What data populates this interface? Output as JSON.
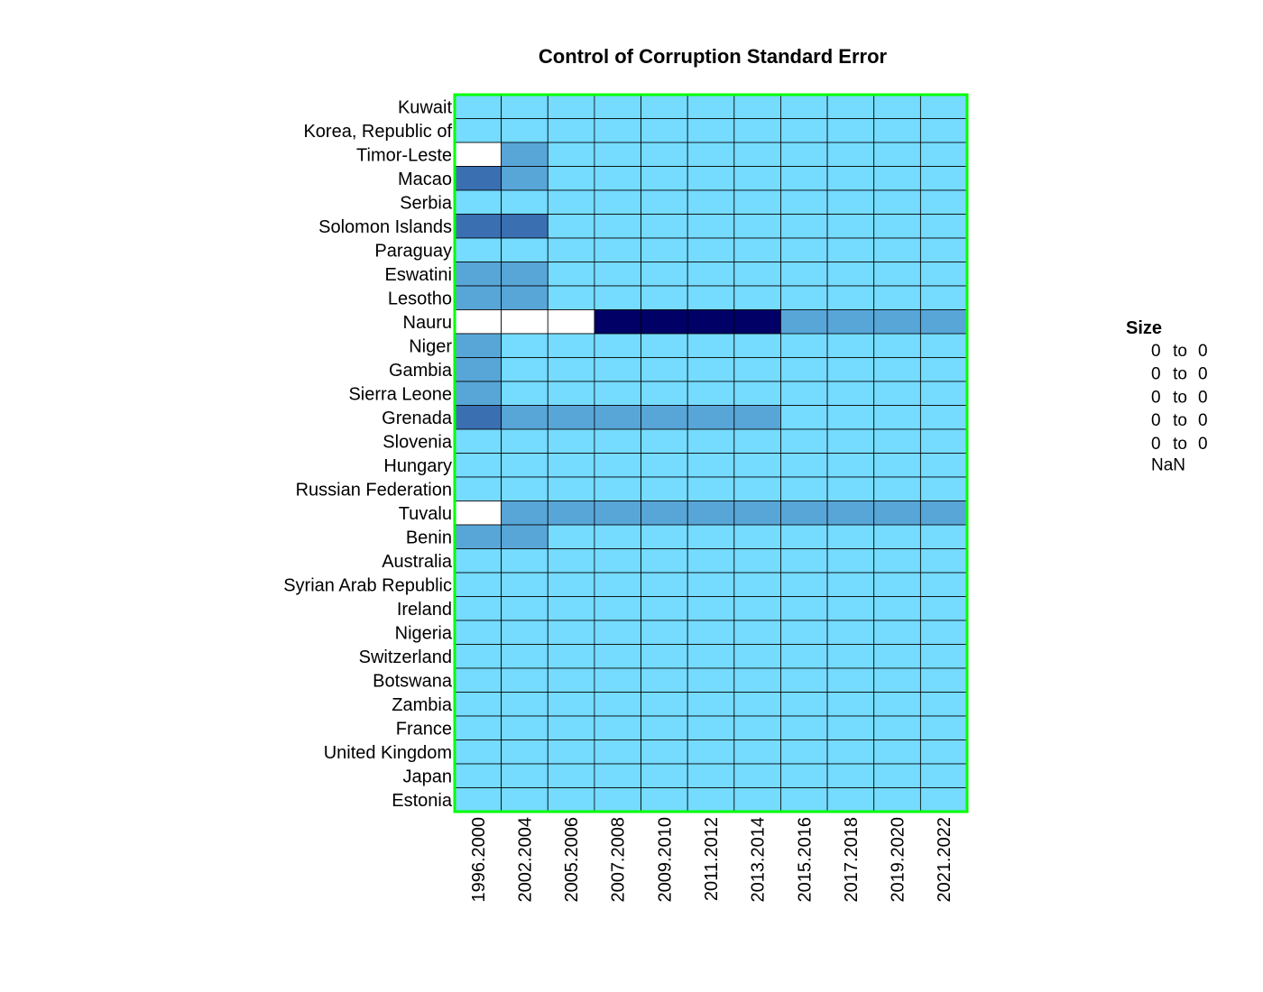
{
  "chart_data": {
    "type": "heatmap",
    "title": "Control of Corruption Standard Error",
    "columns": [
      "1996.2000",
      "2002.2004",
      "2005.2006",
      "2007.2008",
      "2009.2010",
      "2011.2012",
      "2013.2014",
      "2015.2016",
      "2017.2018",
      "2019.2020",
      "2021.2022"
    ],
    "rows": [
      "Kuwait",
      "Korea, Republic of",
      "Timor-Leste",
      "Macao",
      "Serbia",
      "Solomon Islands",
      "Paraguay",
      "Eswatini",
      "Lesotho",
      "Nauru",
      "Niger",
      "Gambia",
      "Sierra Leone",
      "Grenada",
      "Slovenia",
      "Hungary",
      "Russian Federation",
      "Tuvalu",
      "Benin",
      "Australia",
      "Syrian Arab Republic",
      "Ireland",
      "Nigeria",
      "Switzerland",
      "Botswana",
      "Zambia",
      "France",
      "United Kingdom",
      "Japan",
      "Estonia"
    ],
    "values": [
      [
        1,
        1,
        1,
        1,
        1,
        1,
        1,
        1,
        1,
        1,
        1
      ],
      [
        1,
        1,
        1,
        1,
        1,
        1,
        1,
        1,
        1,
        1,
        1
      ],
      [
        null,
        2,
        1,
        1,
        1,
        1,
        1,
        1,
        1,
        1,
        1
      ],
      [
        3,
        2,
        1,
        1,
        1,
        1,
        1,
        1,
        1,
        1,
        1
      ],
      [
        1,
        1,
        1,
        1,
        1,
        1,
        1,
        1,
        1,
        1,
        1
      ],
      [
        3,
        3,
        1,
        1,
        1,
        1,
        1,
        1,
        1,
        1,
        1
      ],
      [
        1,
        1,
        1,
        1,
        1,
        1,
        1,
        1,
        1,
        1,
        1
      ],
      [
        2,
        2,
        1,
        1,
        1,
        1,
        1,
        1,
        1,
        1,
        1
      ],
      [
        2,
        2,
        1,
        1,
        1,
        1,
        1,
        1,
        1,
        1,
        1
      ],
      [
        null,
        null,
        null,
        5,
        5,
        5,
        5,
        2,
        2,
        2,
        2
      ],
      [
        2,
        1,
        1,
        1,
        1,
        1,
        1,
        1,
        1,
        1,
        1
      ],
      [
        2,
        1,
        1,
        1,
        1,
        1,
        1,
        1,
        1,
        1,
        1
      ],
      [
        2,
        1,
        1,
        1,
        1,
        1,
        1,
        1,
        1,
        1,
        1
      ],
      [
        3,
        2,
        2,
        2,
        2,
        2,
        2,
        1,
        1,
        1,
        1
      ],
      [
        1,
        1,
        1,
        1,
        1,
        1,
        1,
        1,
        1,
        1,
        1
      ],
      [
        1,
        1,
        1,
        1,
        1,
        1,
        1,
        1,
        1,
        1,
        1
      ],
      [
        1,
        1,
        1,
        1,
        1,
        1,
        1,
        1,
        1,
        1,
        1
      ],
      [
        null,
        2,
        2,
        2,
        2,
        2,
        2,
        2,
        2,
        2,
        2
      ],
      [
        2,
        2,
        1,
        1,
        1,
        1,
        1,
        1,
        1,
        1,
        1
      ],
      [
        1,
        1,
        1,
        1,
        1,
        1,
        1,
        1,
        1,
        1,
        1
      ],
      [
        1,
        1,
        1,
        1,
        1,
        1,
        1,
        1,
        1,
        1,
        1
      ],
      [
        1,
        1,
        1,
        1,
        1,
        1,
        1,
        1,
        1,
        1,
        1
      ],
      [
        1,
        1,
        1,
        1,
        1,
        1,
        1,
        1,
        1,
        1,
        1
      ],
      [
        1,
        1,
        1,
        1,
        1,
        1,
        1,
        1,
        1,
        1,
        1
      ],
      [
        1,
        1,
        1,
        1,
        1,
        1,
        1,
        1,
        1,
        1,
        1
      ],
      [
        1,
        1,
        1,
        1,
        1,
        1,
        1,
        1,
        1,
        1,
        1
      ],
      [
        1,
        1,
        1,
        1,
        1,
        1,
        1,
        1,
        1,
        1,
        1
      ],
      [
        1,
        1,
        1,
        1,
        1,
        1,
        1,
        1,
        1,
        1,
        1
      ],
      [
        1,
        1,
        1,
        1,
        1,
        1,
        1,
        1,
        1,
        1,
        1
      ],
      [
        1,
        1,
        1,
        1,
        1,
        1,
        1,
        1,
        1,
        1,
        1
      ]
    ],
    "color_scale": {
      "1": "#75dbff",
      "2": "#58a6d8",
      "3": "#3a6fb2",
      "4": "#1d3b8d",
      "5": "#000066",
      "missing": "#ffffff"
    },
    "frame_color": "#00ff00",
    "grid_color": "#000000",
    "legend": {
      "title": "Size",
      "placement": "right",
      "entries": [
        {
          "from": "0",
          "sep": "to",
          "to": "0"
        },
        {
          "from": "0",
          "sep": "to",
          "to": "0"
        },
        {
          "from": "0",
          "sep": "to",
          "to": "0"
        },
        {
          "from": "0",
          "sep": "to",
          "to": "0"
        },
        {
          "from": "0",
          "sep": "to",
          "to": "0"
        }
      ],
      "nan_label": "NaN"
    }
  }
}
